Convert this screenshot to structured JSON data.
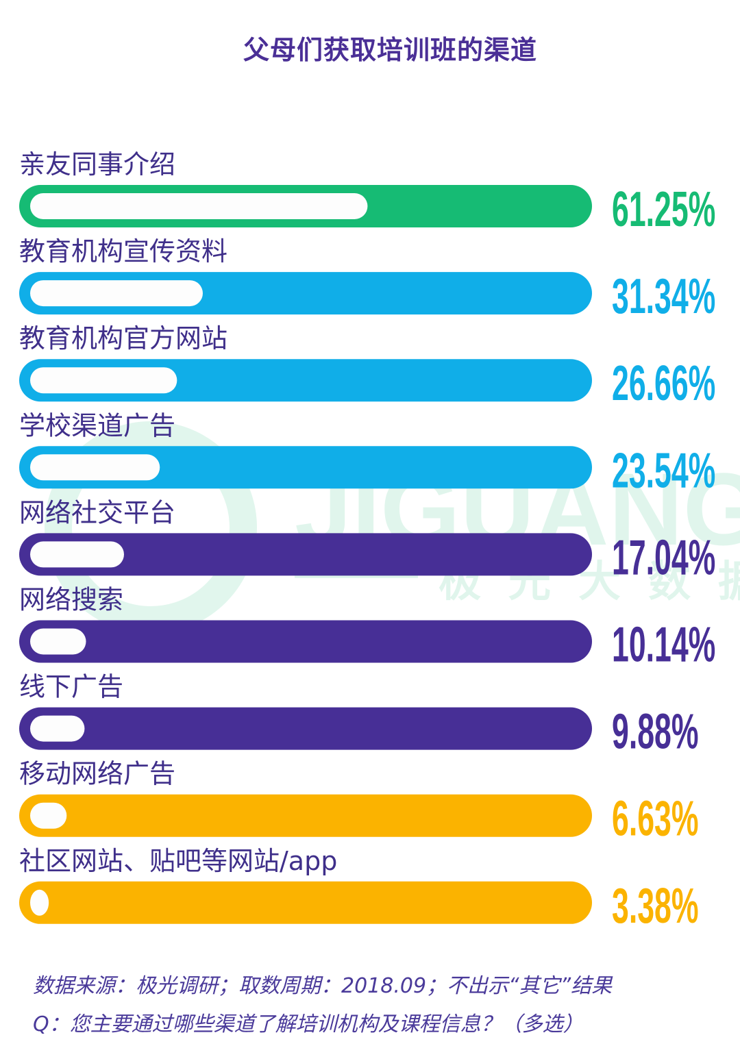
{
  "watermark": {
    "brand_en": "JIGUANG",
    "brand_cn": "极光大数据"
  },
  "chart_data": {
    "type": "bar",
    "orientation": "horizontal",
    "title": "父母们获取培训班的渠道",
    "categories": [
      "亲友同事介绍",
      "教育机构宣传资料",
      "教育机构官方网站",
      "学校渠道广告",
      "网络社交平台",
      "网络搜索",
      "线下广告",
      "移动网络广告",
      "社区网站、贴吧等网站/app"
    ],
    "values": [
      61.25,
      31.34,
      26.66,
      23.54,
      17.04,
      10.14,
      9.88,
      6.63,
      3.38
    ],
    "labels": [
      "61.25%",
      "31.34%",
      "26.66%",
      "23.54%",
      "17.04%",
      "10.14%",
      "9.88%",
      "6.63%",
      "3.38%"
    ],
    "colors": [
      "#16bb74",
      "#10aee8",
      "#10aee8",
      "#10aee8",
      "#472f96",
      "#472f96",
      "#472f96",
      "#fbb300",
      "#fbb300"
    ],
    "xlim": [
      0,
      100
    ],
    "grid": false,
    "legend": "none"
  },
  "footer": {
    "source": "数据来源：极光调研；取数周期：2018.09；不出示“其它”结果",
    "question": "Q：您主要通过哪些渠道了解培训机构及课程信息？（多选）"
  }
}
